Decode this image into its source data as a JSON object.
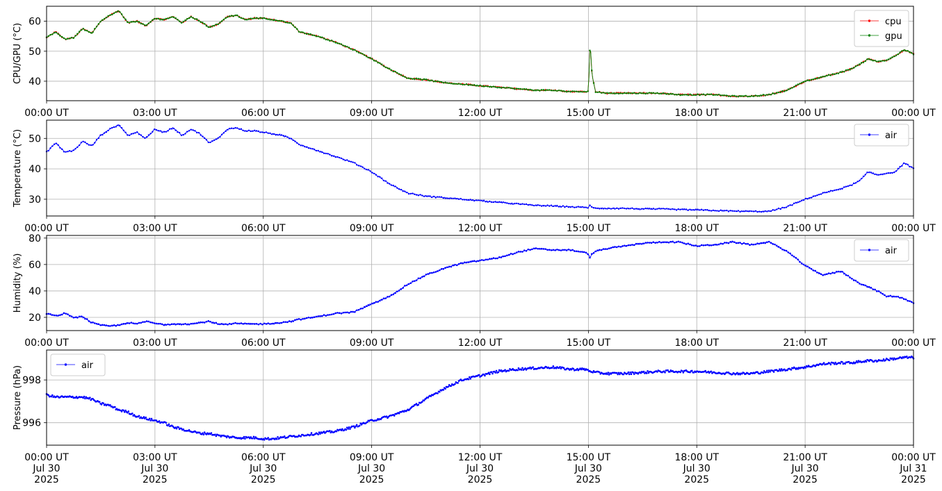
{
  "chart_data": [
    {
      "type": "line",
      "ylabel": "CPU/GPU (°C)",
      "ylim": [
        33.5,
        65.0
      ],
      "yticks": [
        40,
        50,
        60
      ],
      "ytick_labels": [
        "40",
        "50",
        "60"
      ],
      "legend_position": "upper-right",
      "grid": true,
      "x_hours": [
        0,
        0.25,
        0.5,
        0.75,
        1,
        1.25,
        1.5,
        1.75,
        2,
        2.25,
        2.5,
        2.75,
        3,
        3.25,
        3.5,
        3.75,
        4,
        4.25,
        4.5,
        4.75,
        5,
        5.25,
        5.5,
        5.75,
        6,
        6.25,
        6.5,
        6.75,
        7,
        7.5,
        8,
        8.5,
        9,
        9.5,
        10,
        10.5,
        11,
        11.5,
        12,
        12.5,
        13,
        13.5,
        14,
        14.5,
        14.9,
        15.0,
        15.05,
        15.1,
        15.2,
        15.5,
        16,
        16.5,
        17,
        17.5,
        18,
        18.5,
        19,
        19.5,
        20,
        20.5,
        21,
        21.5,
        22,
        22.25,
        22.5,
        22.75,
        23,
        23.25,
        23.5,
        23.75,
        24
      ],
      "series": [
        {
          "name": "cpu",
          "color": "#ff0000",
          "values": [
            54.5,
            56.5,
            54,
            54.5,
            57.5,
            56,
            60,
            62,
            63.5,
            59.5,
            60,
            58.5,
            61,
            60.5,
            61.5,
            59.5,
            61.5,
            60,
            58,
            59,
            61.5,
            62,
            60.5,
            61,
            61,
            60.5,
            60,
            59.5,
            56.5,
            55,
            53,
            50.5,
            47.5,
            44,
            41,
            40.5,
            39.5,
            39,
            38.5,
            38,
            37.5,
            37,
            37,
            36.5,
            36.5,
            36.5,
            53.5,
            42,
            36.5,
            36,
            36,
            36,
            36,
            35.5,
            35.5,
            35.5,
            35,
            35,
            35.5,
            37,
            40,
            41.5,
            43,
            44,
            45.5,
            47.5,
            46.5,
            47,
            48.5,
            50.5,
            49
          ]
        },
        {
          "name": "gpu",
          "color": "#008000",
          "values": [
            54.5,
            56.5,
            54,
            54.5,
            57.5,
            56,
            60,
            62,
            63.5,
            59.5,
            60,
            58.5,
            61,
            60.5,
            61.5,
            59.5,
            61.5,
            60,
            58,
            59,
            61.5,
            62,
            60.5,
            61,
            61,
            60.5,
            60,
            59.5,
            56.5,
            55,
            53,
            50.5,
            47.5,
            44,
            41,
            40.5,
            39.5,
            39,
            38.5,
            38,
            37.5,
            37,
            37,
            36.5,
            36.5,
            36.5,
            53.5,
            42,
            36.5,
            36,
            36,
            36,
            36,
            35.5,
            35.5,
            35.5,
            35,
            35,
            35.5,
            37,
            40,
            41.5,
            43,
            44,
            45.5,
            47.5,
            46.5,
            47,
            48.5,
            50.5,
            49
          ]
        }
      ]
    },
    {
      "type": "line",
      "ylabel": "Temperature (°C)",
      "ylim": [
        24.5,
        56.0
      ],
      "yticks": [
        30,
        40,
        50
      ],
      "ytick_labels": [
        "30",
        "40",
        "50"
      ],
      "legend_position": "upper-right",
      "grid": true,
      "x_hours": [
        0,
        0.25,
        0.5,
        0.75,
        1,
        1.25,
        1.5,
        1.75,
        2,
        2.25,
        2.5,
        2.75,
        3,
        3.25,
        3.5,
        3.75,
        4,
        4.25,
        4.5,
        4.75,
        5,
        5.25,
        5.5,
        5.75,
        6,
        6.25,
        6.5,
        6.75,
        7,
        7.5,
        8,
        8.5,
        9,
        9.5,
        10,
        10.5,
        11,
        11.5,
        12,
        12.5,
        13,
        13.5,
        14,
        14.5,
        14.9,
        15.0,
        15.05,
        15.1,
        15.2,
        15.5,
        16,
        16.5,
        17,
        17.5,
        18,
        18.5,
        19,
        19.5,
        20,
        20.5,
        21,
        21.5,
        22,
        22.25,
        22.5,
        22.75,
        23,
        23.25,
        23.5,
        23.75,
        24
      ],
      "series": [
        {
          "name": "air",
          "color": "#0000ff",
          "values": [
            45.5,
            48.5,
            45.5,
            46,
            49,
            47.5,
            51,
            53,
            54.5,
            51,
            52,
            50,
            53,
            52,
            53.5,
            51,
            53,
            51.5,
            48.5,
            50,
            53,
            53.5,
            52.5,
            52.5,
            52,
            51.5,
            51,
            50,
            48,
            46,
            44,
            42,
            39,
            35,
            32,
            31,
            30.5,
            30,
            29.5,
            29,
            28.5,
            28,
            27.8,
            27.5,
            27.3,
            27.3,
            28.2,
            27.2,
            27,
            27,
            27,
            26.8,
            26.8,
            26.6,
            26.5,
            26.3,
            26.1,
            26,
            26,
            27.5,
            30,
            32,
            33.5,
            34.5,
            36,
            39,
            38,
            38.5,
            39,
            42,
            40
          ]
        }
      ]
    },
    {
      "type": "line",
      "ylabel": "Humidity (%)",
      "ylim": [
        10.0,
        82.0
      ],
      "yticks": [
        20,
        40,
        60,
        80
      ],
      "ytick_labels": [
        "20",
        "40",
        "60",
        "80"
      ],
      "legend_position": "upper-right",
      "grid": true,
      "x_hours": [
        0,
        0.25,
        0.5,
        0.75,
        1,
        1.25,
        1.5,
        1.75,
        2,
        2.25,
        2.5,
        2.75,
        3,
        3.25,
        3.5,
        3.75,
        4,
        4.25,
        4.5,
        4.75,
        5,
        5.25,
        5.5,
        5.75,
        6,
        6.25,
        6.5,
        6.75,
        7,
        7.5,
        8,
        8.5,
        9,
        9.5,
        10,
        10.5,
        11,
        11.5,
        12,
        12.5,
        13,
        13.5,
        14,
        14.5,
        14.9,
        15.0,
        15.05,
        15.1,
        15.2,
        15.5,
        16,
        16.5,
        17,
        17.5,
        18,
        18.5,
        19,
        19.5,
        20,
        20.5,
        21,
        21.5,
        22,
        22.25,
        22.5,
        22.75,
        23,
        23.25,
        23.5,
        23.75,
        24
      ],
      "series": [
        {
          "name": "air",
          "color": "#0000ff",
          "values": [
            23,
            21,
            23,
            20,
            20.5,
            16,
            14,
            13.5,
            14,
            16,
            15,
            17,
            15.5,
            14.5,
            15,
            15,
            15,
            16,
            17,
            15,
            14.5,
            15.5,
            15,
            15,
            15,
            15.5,
            16,
            17,
            18.5,
            20.5,
            23,
            24,
            30,
            36,
            45,
            52,
            57,
            61,
            63,
            65,
            69,
            72,
            71,
            71,
            69,
            68,
            65,
            68,
            70,
            72,
            74,
            76,
            77,
            77,
            74,
            75,
            77,
            75,
            77,
            70,
            59,
            52,
            55,
            50,
            46,
            43,
            40,
            36,
            36,
            34,
            31
          ]
        }
      ]
    },
    {
      "type": "line",
      "ylabel": "Pressure (hPa)",
      "ylim": [
        994.95,
        999.4
      ],
      "yticks": [
        996,
        998
      ],
      "ytick_labels": [
        "996",
        "998"
      ],
      "legend_position": "upper-left",
      "grid": true,
      "x_hours": [
        0,
        0.25,
        0.5,
        0.75,
        1,
        1.25,
        1.5,
        1.75,
        2,
        2.25,
        2.5,
        2.75,
        3,
        3.25,
        3.5,
        3.75,
        4,
        4.25,
        4.5,
        4.75,
        5,
        5.25,
        5.5,
        5.75,
        6,
        6.25,
        6.5,
        6.75,
        7,
        7.5,
        8,
        8.5,
        9,
        9.5,
        10,
        10.5,
        11,
        11.5,
        12,
        12.5,
        13,
        13.5,
        14,
        14.5,
        14.9,
        15.0,
        15.05,
        15.1,
        15.2,
        15.5,
        16,
        16.5,
        17,
        17.5,
        18,
        18.5,
        19,
        19.5,
        20,
        20.5,
        21,
        21.5,
        22,
        22.25,
        22.5,
        22.75,
        23,
        23.25,
        23.5,
        23.75,
        24
      ],
      "series": [
        {
          "name": "air",
          "color": "#0000ff",
          "values": [
            997.3,
            997.2,
            997.2,
            997.2,
            997.2,
            997.1,
            996.9,
            996.8,
            996.6,
            996.5,
            996.3,
            996.2,
            996.1,
            996.0,
            995.8,
            995.7,
            995.6,
            995.5,
            995.5,
            995.4,
            995.35,
            995.3,
            995.3,
            995.3,
            995.25,
            995.25,
            995.3,
            995.35,
            995.4,
            995.5,
            995.6,
            995.8,
            996.1,
            996.3,
            996.6,
            997.1,
            997.6,
            998.0,
            998.2,
            998.4,
            998.5,
            998.55,
            998.6,
            998.5,
            998.5,
            998.45,
            998.4,
            998.4,
            998.35,
            998.3,
            998.3,
            998.35,
            998.4,
            998.4,
            998.4,
            998.35,
            998.3,
            998.3,
            998.4,
            998.5,
            998.6,
            998.75,
            998.8,
            998.8,
            998.85,
            998.9,
            998.9,
            998.95,
            999.0,
            999.05,
            999.05
          ]
        }
      ]
    }
  ],
  "x_axis": {
    "tick_hours": [
      0,
      3,
      6,
      9,
      12,
      15,
      18,
      21,
      24
    ],
    "tick_labels": [
      "00:00 UT",
      "03:00 UT",
      "06:00 UT",
      "09:00 UT",
      "12:00 UT",
      "15:00 UT",
      "18:00 UT",
      "21:00 UT",
      "00:00 UT"
    ],
    "bottom_date_line1": [
      "Jul 30",
      "Jul 30",
      "Jul 30",
      "Jul 30",
      "Jul 30",
      "Jul 30",
      "Jul 30",
      "Jul 30",
      "Jul 31"
    ],
    "bottom_date_line2": [
      "2025",
      "2025",
      "2025",
      "2025",
      "2025",
      "2025",
      "2025",
      "2025",
      "2025"
    ]
  }
}
